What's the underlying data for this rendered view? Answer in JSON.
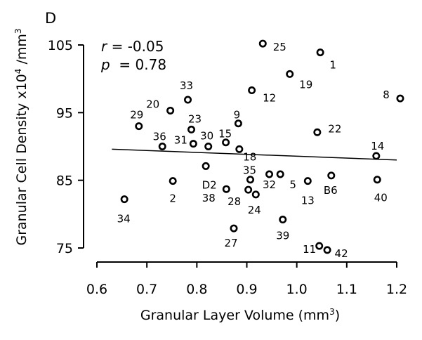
{
  "chart_data": {
    "type": "scatter",
    "panel_label": "D",
    "xlabel": "Granular Layer Volume (mm",
    "xlabel_sup": "3",
    "xlabel_close": ")",
    "ylabel": "Granular Cell Density x10",
    "ylabel_sup1": "4",
    "ylabel_mid": " /mm",
    "ylabel_sup2": "3",
    "xlim": [
      0.6,
      1.2
    ],
    "ylim": [
      75,
      105
    ],
    "xticks": [
      0.6,
      0.7,
      0.8,
      0.9,
      1.0,
      1.1,
      1.2
    ],
    "xtick_labels": [
      "0.6",
      "0.7",
      "0.8",
      "0.9",
      "1.0",
      "1.1",
      "1.2"
    ],
    "yticks": [
      75,
      85,
      95,
      105
    ],
    "ytick_labels": [
      "75",
      "85",
      "95",
      "105"
    ],
    "stats": {
      "r_label": "r",
      "r_value": " = -0.05",
      "p_label": "p",
      "p_value": "  = 0.78"
    },
    "trend_line": {
      "x": [
        0.63,
        1.2
      ],
      "y": [
        89.6,
        88.0
      ]
    },
    "points": [
      {
        "label": "1",
        "x": 1.047,
        "y": 103.9
      },
      {
        "label": "2",
        "x": 0.752,
        "y": 84.9
      },
      {
        "label": "5",
        "x": 0.967,
        "y": 85.9
      },
      {
        "label": "8",
        "x": 1.207,
        "y": 97.1
      },
      {
        "label": "9",
        "x": 0.883,
        "y": 93.4
      },
      {
        "label": "11",
        "x": 1.045,
        "y": 75.3
      },
      {
        "label": "12",
        "x": 0.91,
        "y": 98.3
      },
      {
        "label": "13",
        "x": 1.022,
        "y": 84.9
      },
      {
        "label": "14",
        "x": 1.159,
        "y": 88.6
      },
      {
        "label": "15",
        "x": 0.858,
        "y": 90.6
      },
      {
        "label": "18",
        "x": 0.885,
        "y": 89.6
      },
      {
        "label": "19",
        "x": 0.986,
        "y": 100.7
      },
      {
        "label": "20",
        "x": 0.747,
        "y": 95.3
      },
      {
        "label": "22",
        "x": 1.041,
        "y": 92.1
      },
      {
        "label": "23",
        "x": 0.789,
        "y": 92.5
      },
      {
        "label": "24",
        "x": 0.918,
        "y": 82.9
      },
      {
        "label": "25",
        "x": 0.932,
        "y": 105.2
      },
      {
        "label": "27",
        "x": 0.874,
        "y": 77.9
      },
      {
        "label": "28",
        "x": 0.903,
        "y": 83.6
      },
      {
        "label": "29",
        "x": 0.684,
        "y": 93.0
      },
      {
        "label": "30",
        "x": 0.823,
        "y": 90.0
      },
      {
        "label": "31",
        "x": 0.793,
        "y": 90.4
      },
      {
        "label": "32",
        "x": 0.945,
        "y": 85.9
      },
      {
        "label": "33",
        "x": 0.782,
        "y": 96.9
      },
      {
        "label": "34",
        "x": 0.655,
        "y": 82.2
      },
      {
        "label": "35",
        "x": 0.907,
        "y": 85.1
      },
      {
        "label": "36",
        "x": 0.731,
        "y": 90.0
      },
      {
        "label": "38",
        "x": 0.859,
        "y": 83.7
      },
      {
        "label": "39",
        "x": 0.972,
        "y": 79.2
      },
      {
        "label": "40",
        "x": 1.161,
        "y": 85.1
      },
      {
        "label": "42",
        "x": 1.061,
        "y": 74.7
      },
      {
        "label": "B6",
        "x": 1.069,
        "y": 85.7
      },
      {
        "label": "D2",
        "x": 0.818,
        "y": 87.1
      }
    ]
  }
}
